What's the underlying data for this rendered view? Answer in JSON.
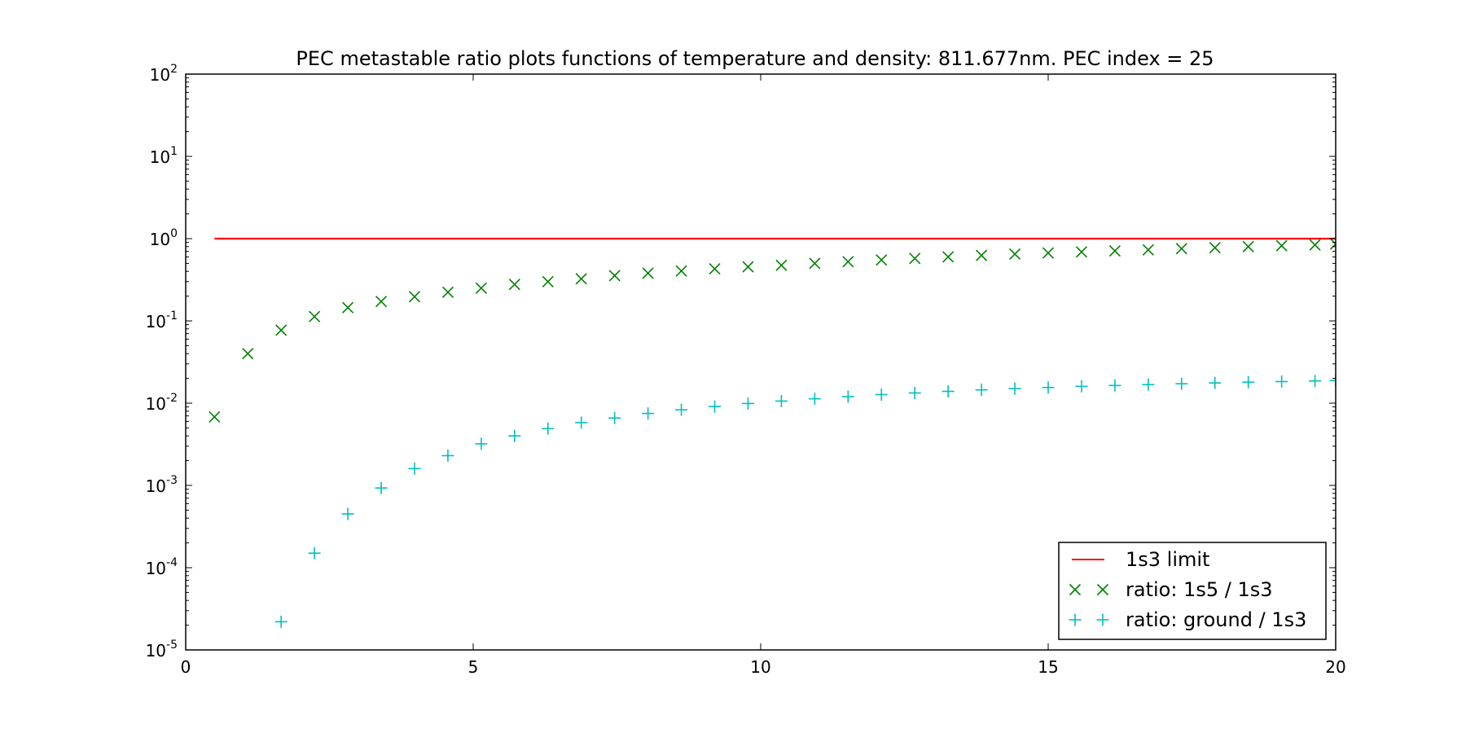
{
  "chart_data": {
    "type": "scatter",
    "title": "PEC metastable ratio plots functions of temperature and density: 811.677nm. PEC index = 25",
    "xlabel": "",
    "ylabel": "",
    "xlim": [
      0,
      20
    ],
    "ylim": [
      1e-05,
      100
    ],
    "yscale": "log",
    "x_ticks": [
      "0",
      "5",
      "10",
      "15",
      "20"
    ],
    "y_ticks": [
      {
        "base": "10",
        "exp": "2",
        "value": 100
      },
      {
        "base": "10",
        "exp": "1",
        "value": 10
      },
      {
        "base": "10",
        "exp": "0",
        "value": 1
      },
      {
        "base": "10",
        "exp": "-1",
        "value": 0.1
      },
      {
        "base": "10",
        "exp": "-2",
        "value": 0.01
      },
      {
        "base": "10",
        "exp": "-3",
        "value": 0.001
      },
      {
        "base": "10",
        "exp": "-4",
        "value": 0.0001
      },
      {
        "base": "10",
        "exp": "-5",
        "value": 1e-05
      }
    ],
    "grid": false,
    "legend_position": "bottom-right",
    "x": [
      0.5,
      1.08,
      1.66,
      2.24,
      2.82,
      3.4,
      3.98,
      4.56,
      5.14,
      5.72,
      6.3,
      6.88,
      7.46,
      8.04,
      8.62,
      9.2,
      9.78,
      10.36,
      10.94,
      11.52,
      12.1,
      12.68,
      13.26,
      13.84,
      14.42,
      15.0,
      15.58,
      16.16,
      16.74,
      17.32,
      17.9,
      18.48,
      19.06,
      19.64,
      20.0
    ],
    "series": [
      {
        "name": "1s3 limit",
        "style": "line",
        "color": "#ff0000",
        "x": [
          0.5,
          20
        ],
        "values": [
          1.0,
          1.0
        ]
      },
      {
        "name": "ratio: 1s5 / 1s3",
        "style": "x",
        "color": "#008000",
        "values": [
          0.0068,
          0.04,
          0.077,
          0.113,
          0.145,
          0.172,
          0.197,
          0.223,
          0.25,
          0.278,
          0.3,
          0.325,
          0.355,
          0.38,
          0.405,
          0.43,
          0.455,
          0.475,
          0.5,
          0.525,
          0.55,
          0.575,
          0.6,
          0.625,
          0.65,
          0.67,
          0.69,
          0.71,
          0.73,
          0.755,
          0.775,
          0.8,
          0.82,
          0.84,
          0.86
        ]
      },
      {
        "name": "ratio: ground / 1s3",
        "style": "+",
        "color": "#00bfbf",
        "values": [
          null,
          null,
          2.2e-05,
          0.00015,
          0.00045,
          0.00093,
          0.0016,
          0.0023,
          0.0032,
          0.004,
          0.0049,
          0.0058,
          0.0066,
          0.0075,
          0.0083,
          0.0091,
          0.0099,
          0.0106,
          0.0113,
          0.012,
          0.0127,
          0.0133,
          0.0139,
          0.0145,
          0.015,
          0.0155,
          0.016,
          0.0164,
          0.0168,
          0.0172,
          0.0176,
          0.018,
          0.0183,
          0.0186,
          0.0188
        ]
      }
    ]
  }
}
